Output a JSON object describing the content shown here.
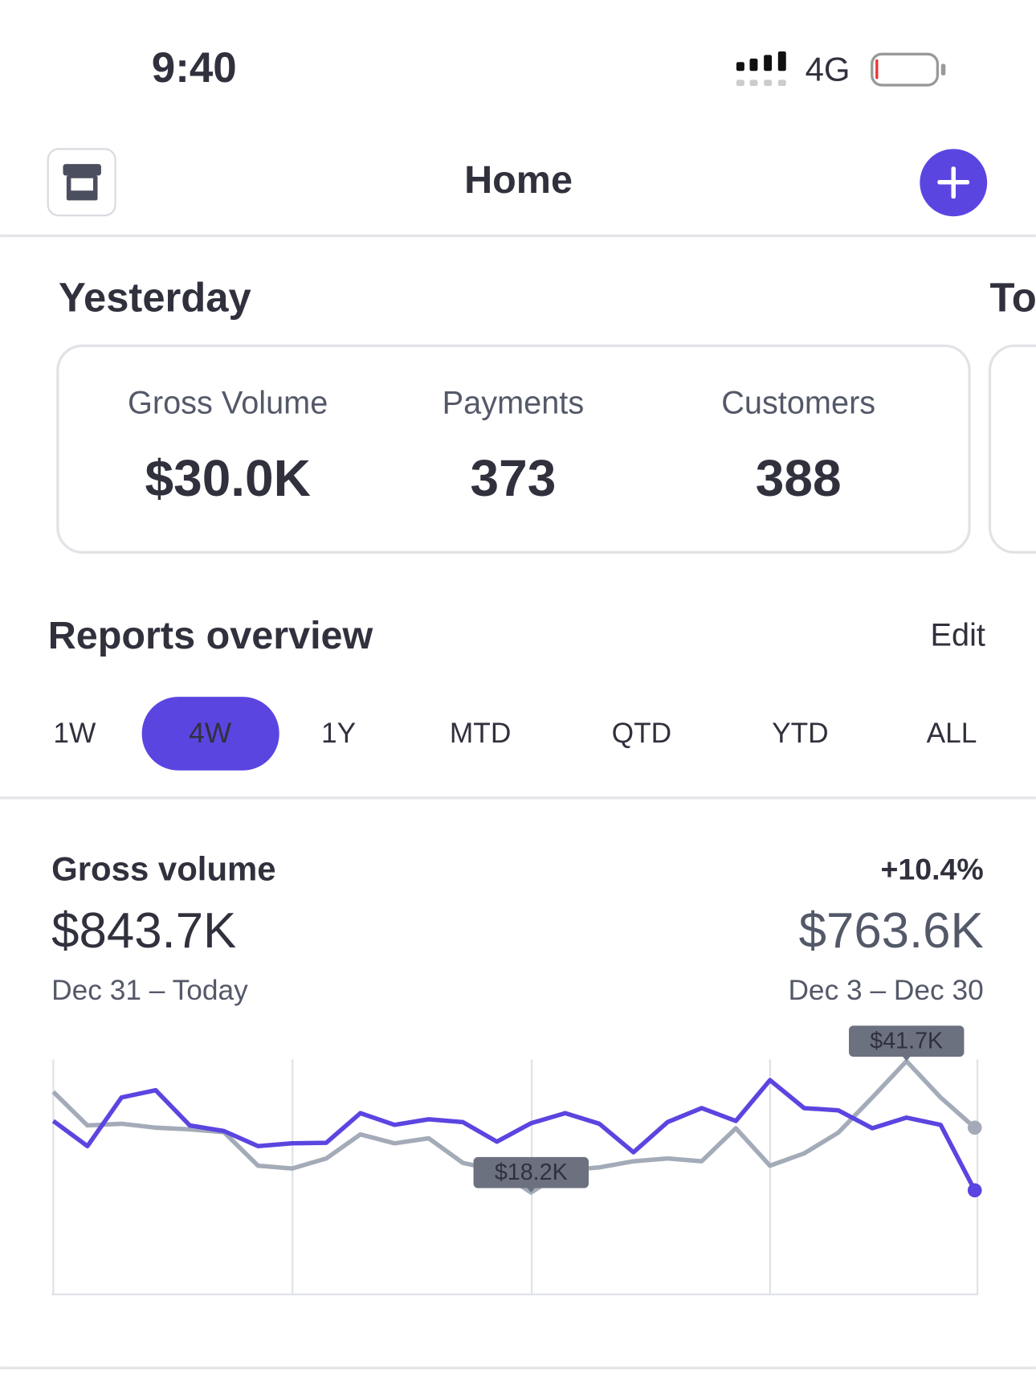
{
  "status_bar": {
    "time": "9:40",
    "network": "4G"
  },
  "header": {
    "title": "Home"
  },
  "yesterday": {
    "title": "Yesterday",
    "next_title": "To",
    "metrics": [
      {
        "label": "Gross Volume",
        "value": "$30.0K"
      },
      {
        "label": "Payments",
        "value": 373
      },
      {
        "label": "Customers",
        "value": 388
      }
    ]
  },
  "reports": {
    "title": "Reports overview",
    "edit": "Edit",
    "periods": [
      "1W",
      "4W",
      "1Y",
      "MTD",
      "QTD",
      "YTD",
      "ALL"
    ],
    "selected": 1
  },
  "gross_volume": {
    "title": "Gross volume",
    "current": "$843.7K",
    "current_range": "Dec 31 – Today",
    "change": "+10.4%",
    "previous": "$763.6K",
    "previous_range": "Dec 3 – Dec 30"
  },
  "chart_data": {
    "type": "line",
    "ylim": [
      0,
      42
    ],
    "series": [
      {
        "color": "#a4abb8",
        "values": [
          36.2,
          30.2,
          30.5,
          29.8,
          29.5,
          29.0,
          23.0,
          22.5,
          24.3,
          28.6,
          27.0,
          27.9,
          23.5,
          22.2,
          18.2,
          22.2,
          22.7,
          23.8,
          24.3,
          23.8,
          29.7,
          23.0,
          25.2,
          28.9,
          35.2,
          41.7,
          35.2,
          29.8
        ],
        "value_labels": [
          null,
          null,
          null,
          null,
          null,
          null,
          null,
          null,
          null,
          null,
          null,
          null,
          null,
          null,
          "$18.2K",
          null,
          null,
          null,
          null,
          null,
          null,
          null,
          null,
          null,
          null,
          "$41.7K",
          null,
          null
        ]
      },
      {
        "color": "#5b45e0",
        "values": [
          31.0,
          26.5,
          35.2,
          36.5,
          30.2,
          29.2,
          26.5,
          27.0,
          27.1,
          32.4,
          30.3,
          31.3,
          30.8,
          27.3,
          30.6,
          32.4,
          30.5,
          25.4,
          30.8,
          33.3,
          31.0,
          38.3,
          33.3,
          32.9,
          29.7,
          31.6,
          30.3,
          18.6
        ]
      }
    ]
  }
}
